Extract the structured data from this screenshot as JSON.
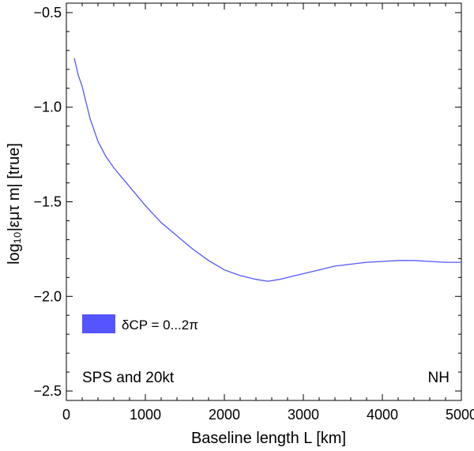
{
  "chart_data": {
    "type": "line",
    "xlabel": "Baseline length L [km]",
    "ylabel": "log₁₀|εμτ m| [true]",
    "xlim": [
      0,
      5000
    ],
    "ylim": [
      -2.55,
      -0.45
    ],
    "x_ticks": [
      0,
      1000,
      2000,
      3000,
      4000,
      5000
    ],
    "x_tick_labels": [
      "0",
      "1000",
      "2000",
      "3000",
      "4000",
      "5000"
    ],
    "y_ticks": [
      -2.5,
      -2.0,
      -1.5,
      -1.0,
      -0.5
    ],
    "y_tick_labels": [
      "−2.5",
      "−2.0",
      "−1.5",
      "−1.0",
      "−0.5"
    ],
    "grid": false,
    "legend_position": "lower-left",
    "series": [
      {
        "name": "δCP = 0...2π",
        "color": "#5555ff",
        "x": [
          100,
          150,
          200,
          300,
          400,
          500,
          600,
          700,
          800,
          1000,
          1200,
          1400,
          1600,
          1800,
          2000,
          2200,
          2400,
          2550,
          2700,
          2900,
          3000,
          3200,
          3400,
          3600,
          3800,
          4000,
          4200,
          4400,
          4600,
          4800,
          5000
        ],
        "y": [
          -0.74,
          -0.83,
          -0.89,
          -1.06,
          -1.18,
          -1.26,
          -1.32,
          -1.37,
          -1.42,
          -1.52,
          -1.61,
          -1.68,
          -1.75,
          -1.81,
          -1.86,
          -1.89,
          -1.91,
          -1.92,
          -1.91,
          -1.89,
          -1.88,
          -1.86,
          -1.84,
          -1.83,
          -1.82,
          -1.815,
          -1.81,
          -1.81,
          -1.815,
          -1.82,
          -1.82
        ]
      }
    ],
    "annotations": {
      "left": "SPS and 20kt",
      "right": "NH"
    }
  }
}
